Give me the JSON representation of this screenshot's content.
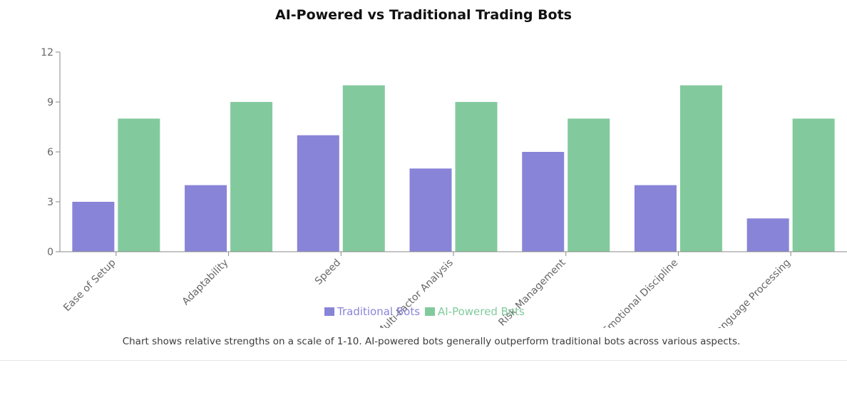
{
  "chart_data": {
    "type": "bar",
    "title": "AI-Powered vs Traditional Trading Bots",
    "categories": [
      "Ease of Setup",
      "Adaptability",
      "Speed",
      "Multi-Factor Analysis",
      "Risk Management",
      "Emotional Discipline",
      "Natural Language Processing"
    ],
    "series": [
      {
        "name": "Traditional Bots",
        "color": "#8884d8",
        "values": [
          3,
          4,
          7,
          5,
          6,
          4,
          2
        ]
      },
      {
        "name": "AI-Powered Bots",
        "color": "#82ca9d",
        "values": [
          8,
          9,
          10,
          9,
          8,
          10,
          8
        ]
      }
    ],
    "ylim": [
      0,
      12
    ],
    "yticks": [
      0,
      3,
      6,
      9,
      12
    ],
    "legend": "bottom-center",
    "grid": false
  },
  "caption": "Chart shows relative strengths on a scale of 1-10. AI-powered bots generally outperform traditional bots across various aspects."
}
